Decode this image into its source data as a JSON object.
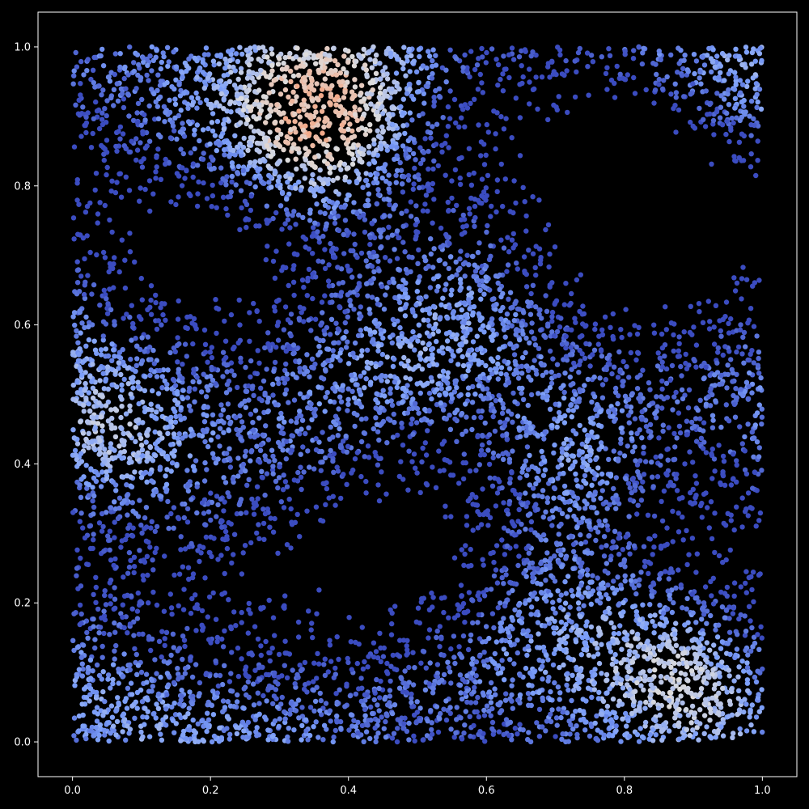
{
  "chart_data": {
    "type": "scatter",
    "title": "",
    "xlabel": "",
    "ylabel": "",
    "xlim": [
      -0.05,
      1.05
    ],
    "ylim": [
      -0.05,
      1.05
    ],
    "xticks": [
      "0.0",
      "0.2",
      "0.4",
      "0.6",
      "0.8",
      "1.0"
    ],
    "yticks": [
      "0.0",
      "0.2",
      "0.4",
      "0.6",
      "0.8",
      "1.0"
    ],
    "grid": false,
    "legend": "none",
    "colormap": "coolwarm",
    "background": "#000000",
    "axis_color": "#ffffff",
    "point_color_low": "#3b4cc0",
    "point_color_high": "#b40426",
    "density_note_points": [
      {
        "x": 0.36,
        "y": 0.88,
        "level": "high"
      },
      {
        "x": 0.74,
        "y": 0.41,
        "level": "medium-high"
      },
      {
        "x": 0.9,
        "y": 0.1,
        "level": "medium"
      },
      {
        "x": 0.05,
        "y": 0.42,
        "level": "medium"
      }
    ]
  }
}
